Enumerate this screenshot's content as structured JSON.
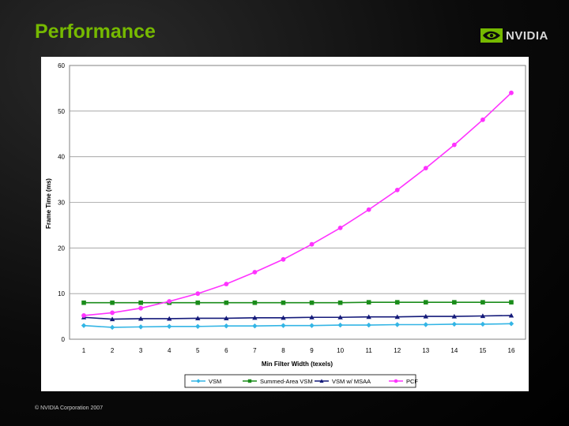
{
  "slide": {
    "title": "Performance",
    "logo_text": "NVIDIA",
    "logo_icon": "nvidia-eye-icon",
    "footer": "© NVIDIA Corporation 2007"
  },
  "colors": {
    "title": "#76b900",
    "vsm": "#33b5e5",
    "summed_area_vsm": "#1a8c1a",
    "vsm_msaa": "#141a7a",
    "pcf": "#ff33ff"
  },
  "chart_data": {
    "type": "line",
    "title": "",
    "xlabel": "Min Filter Width (texels)",
    "ylabel": "Frame Time (ms)",
    "x": [
      1,
      2,
      3,
      4,
      5,
      6,
      7,
      8,
      9,
      10,
      11,
      12,
      13,
      14,
      15,
      16
    ],
    "xlim": [
      1,
      16
    ],
    "ylim": [
      0,
      60
    ],
    "yticks": [
      0,
      10,
      20,
      30,
      40,
      50,
      60
    ],
    "grid": true,
    "legend_position": "bottom",
    "series": [
      {
        "name": "VSM",
        "marker": "diamond",
        "color": "#33b5e5",
        "values": [
          3.0,
          2.6,
          2.7,
          2.8,
          2.8,
          2.9,
          2.9,
          3.0,
          3.0,
          3.1,
          3.1,
          3.2,
          3.2,
          3.3,
          3.3,
          3.4
        ]
      },
      {
        "name": "Summed-Area VSM",
        "marker": "square",
        "color": "#1a8c1a",
        "values": [
          8.0,
          8.0,
          8.0,
          8.0,
          8.0,
          8.0,
          8.0,
          8.0,
          8.0,
          8.0,
          8.1,
          8.1,
          8.1,
          8.1,
          8.1,
          8.1
        ]
      },
      {
        "name": "VSM w/ MSAA",
        "marker": "triangle",
        "color": "#141a7a",
        "values": [
          4.8,
          4.4,
          4.5,
          4.5,
          4.6,
          4.6,
          4.7,
          4.7,
          4.8,
          4.8,
          4.9,
          4.9,
          5.0,
          5.0,
          5.1,
          5.2
        ]
      },
      {
        "name": "PCF",
        "marker": "circle",
        "color": "#ff33ff",
        "values": [
          5.2,
          5.8,
          6.8,
          8.3,
          10.0,
          12.1,
          14.7,
          17.5,
          20.8,
          24.4,
          28.4,
          32.7,
          37.5,
          42.6,
          48.1,
          54.0
        ]
      }
    ]
  }
}
